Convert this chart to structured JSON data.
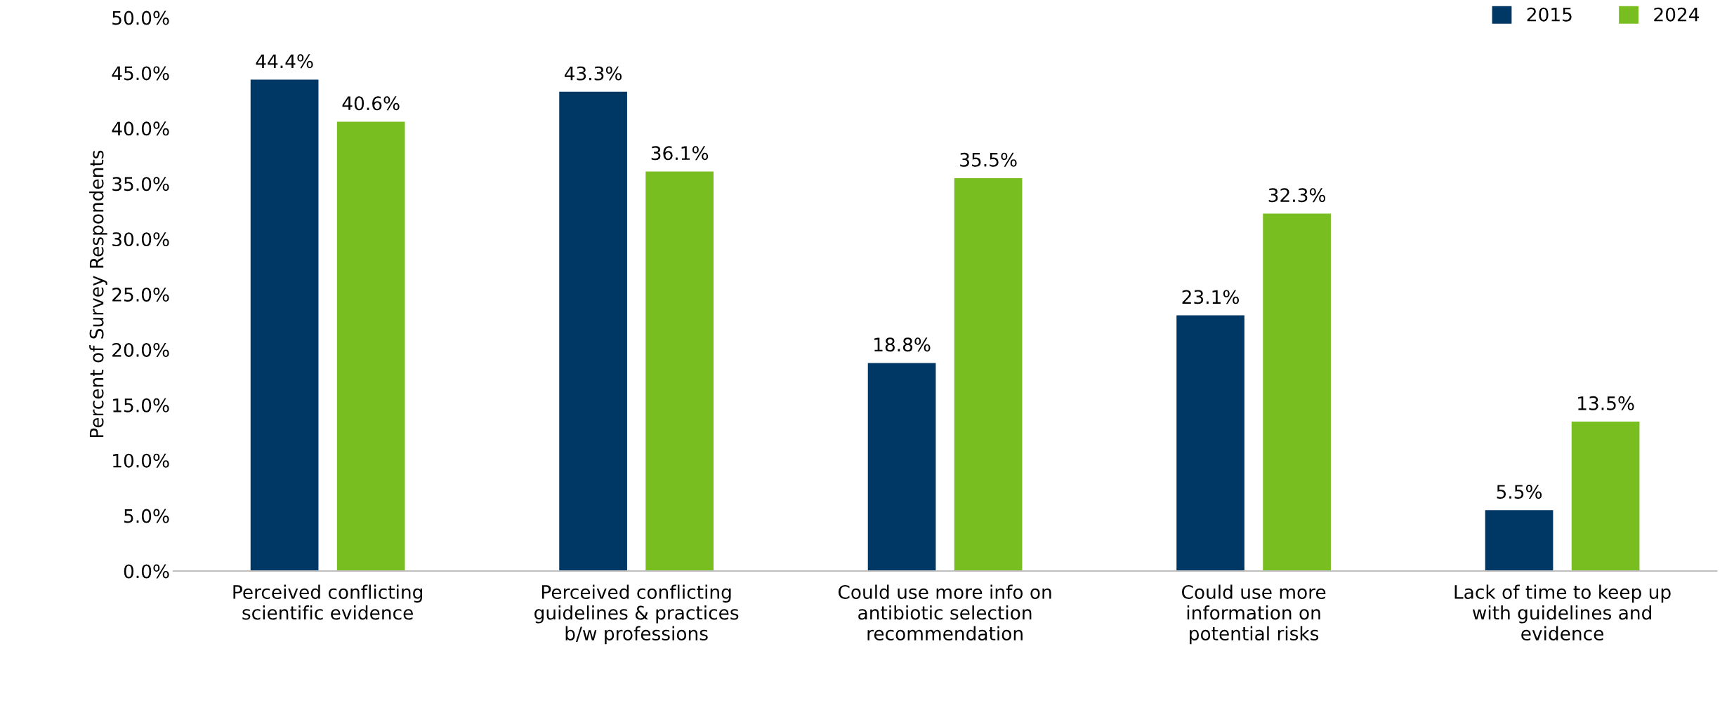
{
  "chart_data": {
    "type": "bar",
    "ylabel": "Percent of Survey Respondents",
    "categories": [
      "Perceived conflicting\nscientific evidence",
      "Perceived conflicting\nguidelines & practices\nb/w professions",
      "Could use more info on\nantibiotic selection\nrecommendation",
      "Could use more\ninformation on\npotential risks",
      "Lack of time to keep up\nwith guidelines and\nevidence"
    ],
    "series": [
      {
        "name": "2015",
        "color": "#003865",
        "values": [
          44.4,
          43.3,
          18.8,
          23.1,
          5.5
        ],
        "value_labels": [
          "44.4%",
          "43.3%",
          "18.8%",
          "23.1%",
          "5.5%"
        ]
      },
      {
        "name": "2024",
        "color": "#78be20",
        "values": [
          40.6,
          36.1,
          35.5,
          32.3,
          13.5
        ],
        "value_labels": [
          "40.6%",
          "36.1%",
          "35.5%",
          "32.3%",
          "13.5%"
        ]
      }
    ],
    "ylim": [
      0,
      50
    ],
    "yticks": [
      {
        "value": 0,
        "label": "0.0%"
      },
      {
        "value": 5,
        "label": "5.0%"
      },
      {
        "value": 10,
        "label": "10.0%"
      },
      {
        "value": 15,
        "label": "15.0%"
      },
      {
        "value": 20,
        "label": "20.0%"
      },
      {
        "value": 25,
        "label": "25.0%"
      },
      {
        "value": 30,
        "label": "30.0%"
      },
      {
        "value": 35,
        "label": "35.0%"
      },
      {
        "value": 40,
        "label": "40.0%"
      },
      {
        "value": 45,
        "label": "45.0%"
      },
      {
        "value": 50,
        "label": "50.0%"
      }
    ],
    "grid": false,
    "legend": "top right"
  }
}
